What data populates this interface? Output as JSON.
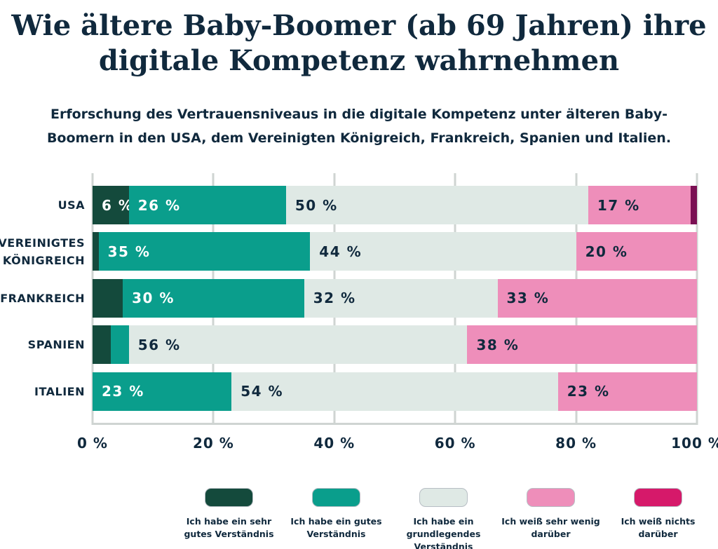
{
  "title": {
    "line1": "Wie ältere Baby-Boomer (ab 69 Jahren) ihre",
    "line2": "digitale Kompetenz wahrnehmen"
  },
  "subtitle": {
    "line1": "Erforschung des Vertrauensniveaus in die digitale Kompetenz unter älteren Baby-",
    "line2": "Boomern in den USA, dem Vereinigten Königreich, Frankreich, Spanien und Italien."
  },
  "colors": {
    "background": "#ffffff",
    "text_navy": "#10293d",
    "gridline": "#cfd4d2",
    "very_good": "#144a3c",
    "good": "#0a9e8c",
    "basic": "#dfe9e5",
    "very_little": "#ee8eba",
    "nothing_legend": "#d6196a",
    "nothing_bar": "#7a1053"
  },
  "chart_data": {
    "type": "bar",
    "stacked": true,
    "orientation": "horizontal",
    "grid": "vertical lines every 20%",
    "legend_position": "bottom",
    "xlim": [
      0,
      100
    ],
    "x_ticks": [
      "0 %",
      "20 %",
      "40 %",
      "60 %",
      "80 %",
      "100 %"
    ],
    "categories": [
      "USA",
      "VEREINIGTES KÖNIGREICH",
      "FRANKREICH",
      "SPANIEN",
      "ITALIEN"
    ],
    "series": [
      {
        "name": "Ich habe ein sehr gutes Verständnis",
        "color": "#144a3c",
        "label_color": "#ffffff",
        "values": [
          6,
          1,
          5,
          3,
          0
        ],
        "labels": [
          "6 %",
          "",
          "",
          "",
          ""
        ]
      },
      {
        "name": "Ich habe ein gutes Verständnis",
        "color": "#0a9e8c",
        "label_color": "#ffffff",
        "values": [
          26,
          35,
          30,
          3,
          23
        ],
        "labels": [
          "26 %",
          "35 %",
          "30 %",
          "",
          "23 %"
        ]
      },
      {
        "name": "Ich habe ein grundlegendes Verständnis",
        "color": "#dfe9e5",
        "label_color": "#10293d",
        "values": [
          50,
          44,
          32,
          56,
          54
        ],
        "labels": [
          "50 %",
          "44 %",
          "32 %",
          "56 %",
          "54 %"
        ]
      },
      {
        "name": "Ich weiß sehr wenig darüber",
        "color": "#ee8eba",
        "label_color": "#10293d",
        "values": [
          17,
          20,
          33,
          38,
          23
        ],
        "labels": [
          "17 %",
          "20 %",
          "33 %",
          "38 %",
          "23 %"
        ]
      },
      {
        "name": "Ich weiß nichts darüber",
        "color": "#d6196a",
        "bar_color": "#7a1053",
        "label_color": "#ffffff",
        "values": [
          1,
          0,
          0,
          0,
          0
        ],
        "labels": [
          "",
          "",
          "",
          "",
          ""
        ]
      }
    ]
  },
  "legend": {
    "items": [
      {
        "color": "#144a3c",
        "lines": [
          "Ich habe ein sehr",
          "gutes Verständnis"
        ]
      },
      {
        "color": "#0a9e8c",
        "lines": [
          "Ich habe ein gutes",
          "Verständnis"
        ]
      },
      {
        "color": "#dfe9e5",
        "lines": [
          "Ich habe ein",
          "grundlegendes",
          "Verständnis"
        ]
      },
      {
        "color": "#ee8eba",
        "lines": [
          "Ich weiß sehr wenig",
          "darüber"
        ]
      },
      {
        "color": "#d6196a",
        "lines": [
          "Ich weiß nichts",
          "darüber"
        ]
      }
    ]
  }
}
